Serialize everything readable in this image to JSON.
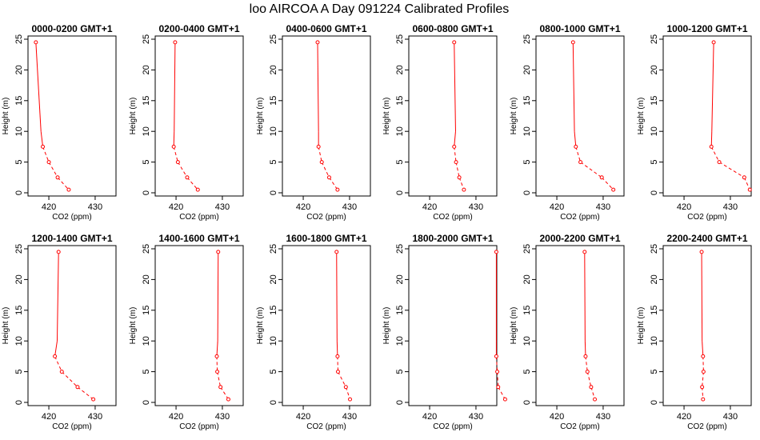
{
  "title": "loo AIRCOA A  Day 091224  Calibrated Profiles",
  "colors": {
    "series": "#ff0000",
    "axis": "#000000"
  },
  "chart_data": [
    {
      "type": "line",
      "title": "0000-0200 GMT+1",
      "xlabel": "CO2 (ppm)",
      "ylabel": "Height (m)",
      "xlim": [
        415.5,
        434.5
      ],
      "ylim": [
        0,
        25
      ],
      "xticks": [
        420,
        430
      ],
      "yticks": [
        0,
        5,
        10,
        15,
        20,
        25
      ],
      "grid": false,
      "x": [
        417.2,
        418.3,
        418.7,
        420.0,
        421.9,
        424.3
      ],
      "y": [
        24.5,
        10,
        7.5,
        5,
        2.5,
        0.5
      ]
    },
    {
      "type": "line",
      "title": "0200-0400 GMT+1",
      "xlabel": "CO2 (ppm)",
      "ylabel": "Height (m)",
      "xlim": [
        415.5,
        434.5
      ],
      "ylim": [
        0,
        25
      ],
      "xticks": [
        420,
        430
      ],
      "yticks": [
        0,
        5,
        10,
        15,
        20,
        25
      ],
      "grid": false,
      "x": [
        419.8,
        419.6,
        419.5,
        420.4,
        422.4,
        424.7
      ],
      "y": [
        24.5,
        10,
        7.5,
        5,
        2.5,
        0.5
      ]
    },
    {
      "type": "line",
      "title": "0400-0600 GMT+1",
      "xlabel": "CO2 (ppm)",
      "ylabel": "Height (m)",
      "xlim": [
        415.5,
        434.5
      ],
      "ylim": [
        0,
        25
      ],
      "xticks": [
        420,
        430
      ],
      "yticks": [
        0,
        5,
        10,
        15,
        20,
        25
      ],
      "grid": false,
      "x": [
        423.1,
        423.3,
        423.3,
        424.0,
        425.6,
        427.4
      ],
      "y": [
        24.5,
        10,
        7.5,
        5,
        2.5,
        0.5
      ]
    },
    {
      "type": "line",
      "title": "0600-0800 GMT+1",
      "xlabel": "CO2 (ppm)",
      "ylabel": "Height (m)",
      "xlim": [
        415.5,
        434.5
      ],
      "ylim": [
        0,
        25
      ],
      "xticks": [
        420,
        430
      ],
      "yticks": [
        0,
        5,
        10,
        15,
        20,
        25
      ],
      "grid": false,
      "x": [
        425.3,
        425.6,
        425.3,
        425.7,
        426.4,
        427.4
      ],
      "y": [
        24.5,
        10,
        7.5,
        5,
        2.5,
        0.5
      ]
    },
    {
      "type": "line",
      "title": "0800-1000 GMT+1",
      "xlabel": "CO2 (ppm)",
      "ylabel": "Height (m)",
      "xlim": [
        415.5,
        434.5
      ],
      "ylim": [
        0,
        25
      ],
      "xticks": [
        420,
        430
      ],
      "yticks": [
        0,
        5,
        10,
        15,
        20,
        25
      ],
      "grid": false,
      "x": [
        423.5,
        423.8,
        424.1,
        425.1,
        429.7,
        432.2
      ],
      "y": [
        24.5,
        10,
        7.5,
        5,
        2.5,
        0.5
      ]
    },
    {
      "type": "line",
      "title": "1000-1200 GMT+1",
      "xlabel": "CO2 (ppm)",
      "ylabel": "Height (m)",
      "xlim": [
        415.5,
        434.5
      ],
      "ylim": [
        0,
        25
      ],
      "xticks": [
        420,
        430
      ],
      "yticks": [
        0,
        5,
        10,
        15,
        20,
        25
      ],
      "grid": false,
      "x": [
        426.4,
        426.0,
        425.9,
        427.6,
        433.0,
        434.2
      ],
      "y": [
        24.5,
        10,
        7.5,
        5,
        2.5,
        0.5
      ]
    },
    {
      "type": "line",
      "title": "1200-1400 GMT+1",
      "xlabel": "CO2 (ppm)",
      "ylabel": "Height (m)",
      "xlim": [
        415.5,
        434.5
      ],
      "ylim": [
        0,
        25
      ],
      "xticks": [
        420,
        430
      ],
      "yticks": [
        0,
        5,
        10,
        15,
        20,
        25
      ],
      "grid": false,
      "x": [
        422.1,
        421.8,
        421.3,
        422.8,
        426.2,
        429.6
      ],
      "y": [
        24.5,
        10,
        7.5,
        5,
        2.5,
        0.5
      ]
    },
    {
      "type": "line",
      "title": "1400-1600 GMT+1",
      "xlabel": "CO2 (ppm)",
      "ylabel": "Height (m)",
      "xlim": [
        415.5,
        434.5
      ],
      "ylim": [
        0,
        25
      ],
      "xticks": [
        420,
        430
      ],
      "yticks": [
        0,
        5,
        10,
        15,
        20,
        25
      ],
      "grid": false,
      "x": [
        429.1,
        429.0,
        428.8,
        428.9,
        429.6,
        431.3
      ],
      "y": [
        24.5,
        10,
        7.5,
        5,
        2.5,
        0.5
      ]
    },
    {
      "type": "line",
      "title": "1600-1800 GMT+1",
      "xlabel": "CO2 (ppm)",
      "ylabel": "Height (m)",
      "xlim": [
        415.5,
        434.5
      ],
      "ylim": [
        0,
        25
      ],
      "xticks": [
        420,
        430
      ],
      "yticks": [
        0,
        5,
        10,
        15,
        20,
        25
      ],
      "grid": false,
      "x": [
        427.2,
        427.3,
        427.4,
        427.5,
        429.2,
        430.1
      ],
      "y": [
        24.5,
        10,
        7.5,
        5,
        2.5,
        0.5
      ]
    },
    {
      "type": "line",
      "title": "1800-2000 GMT+1",
      "xlabel": "CO2 (ppm)",
      "ylabel": "Height (m)",
      "xlim": [
        415.5,
        434.5
      ],
      "ylim": [
        0,
        25
      ],
      "xticks": [
        420,
        430
      ],
      "yticks": [
        0,
        5,
        10,
        15,
        20,
        25
      ],
      "grid": false,
      "x": [
        434.4,
        434.4,
        434.4,
        434.6,
        434.8,
        436.3
      ],
      "y": [
        24.5,
        10,
        7.5,
        5,
        2.5,
        0.5
      ]
    },
    {
      "type": "line",
      "title": "2000-2200 GMT+1",
      "xlabel": "CO2 (ppm)",
      "ylabel": "Height (m)",
      "xlim": [
        415.5,
        434.5
      ],
      "ylim": [
        0,
        25
      ],
      "xticks": [
        420,
        430
      ],
      "yticks": [
        0,
        5,
        10,
        15,
        20,
        25
      ],
      "grid": false,
      "x": [
        426.0,
        426.1,
        426.2,
        426.6,
        427.4,
        428.2
      ],
      "y": [
        24.5,
        10,
        7.5,
        5,
        2.5,
        0.5
      ]
    },
    {
      "type": "line",
      "title": "2200-2400 GMT+1",
      "xlabel": "CO2 (ppm)",
      "ylabel": "Height (m)",
      "xlim": [
        415.5,
        434.5
      ],
      "ylim": [
        0,
        25
      ],
      "xticks": [
        420,
        430
      ],
      "yticks": [
        0,
        5,
        10,
        15,
        20,
        25
      ],
      "grid": false,
      "x": [
        423.8,
        423.9,
        424.1,
        424.2,
        423.9,
        424.1
      ],
      "y": [
        24.5,
        10,
        7.5,
        5,
        2.5,
        0.5
      ]
    }
  ]
}
